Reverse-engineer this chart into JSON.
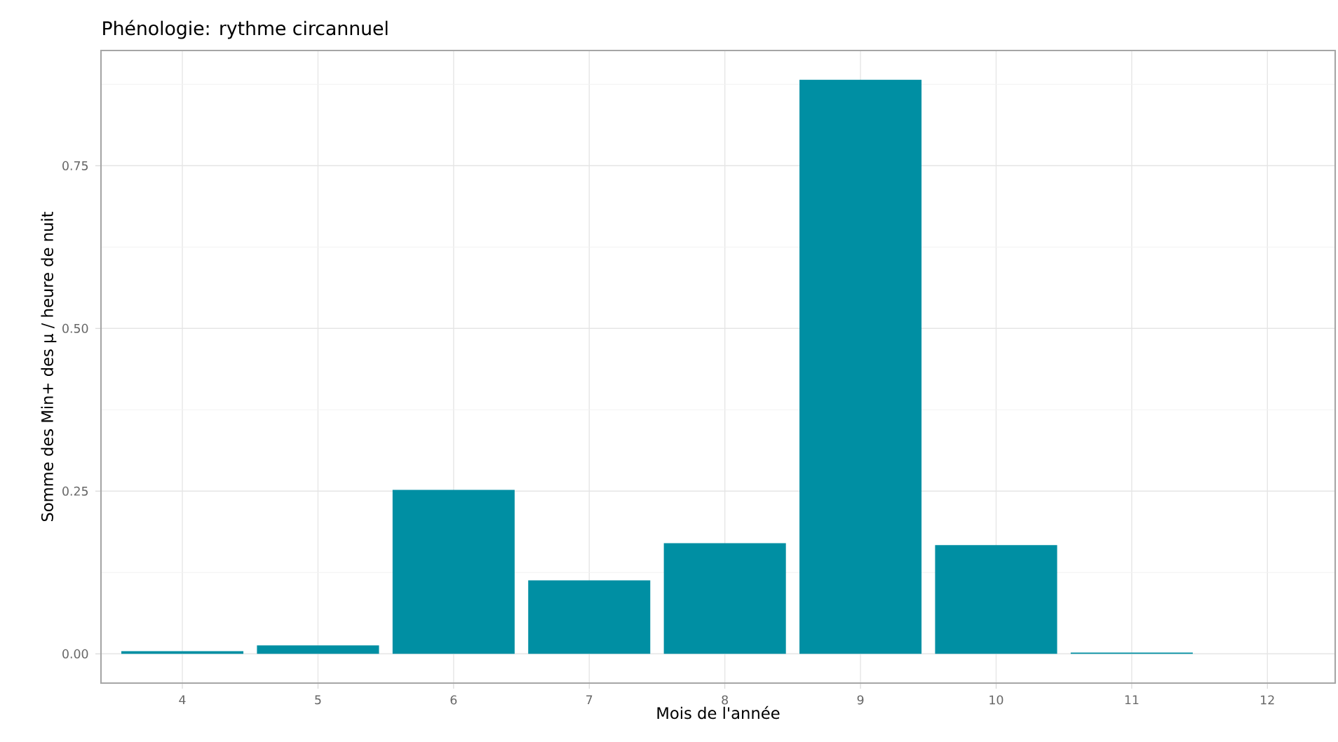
{
  "chart_data": {
    "type": "bar",
    "title": "Phénologie: rythme circannuel",
    "xlabel": "Mois de l'année",
    "ylabel": "Somme des Min+ des µ / heure de nuit",
    "x": [
      4,
      5,
      6,
      7,
      8,
      9,
      10,
      11
    ],
    "values": [
      0.004,
      0.013,
      0.252,
      0.113,
      0.17,
      0.882,
      0.167,
      0.002
    ],
    "color": "#008fa3",
    "xlim": [
      3.4,
      12.5
    ],
    "xticks": [
      4,
      5,
      6,
      7,
      8,
      9,
      10,
      11,
      12
    ],
    "ylim": [
      -0.045,
      0.927
    ],
    "yticks": [
      {
        "value": 0,
        "label": "0.00"
      },
      {
        "value": 0.25,
        "label": "0.25"
      },
      {
        "value": 0.5,
        "label": "0.50"
      },
      {
        "value": 0.75,
        "label": "0.75"
      }
    ],
    "grid": true
  }
}
